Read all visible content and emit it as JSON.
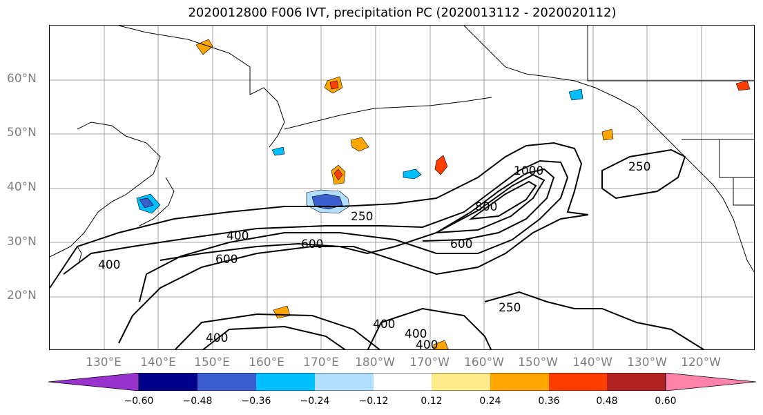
{
  "title": "2020012800 F006 IVT, precipitation PC (2020013112 - 2020020112)",
  "lat_labels": [
    "60°N",
    "50°N",
    "40°N",
    "30°N",
    "20°N"
  ],
  "lon_labels": [
    "130°E",
    "140°E",
    "150°E",
    "160°E",
    "170°E",
    "180°W",
    "170°W",
    "160°W",
    "150°W",
    "140°W",
    "130°W",
    "120°W"
  ],
  "map": {
    "lat_range": [
      10,
      70
    ],
    "lon_range": [
      120,
      250
    ],
    "grid_color": "#a0a0a0",
    "contour_labels": [
      "250",
      "250",
      "250",
      "400",
      "400",
      "400",
      "400",
      "400",
      "400",
      "600",
      "600",
      "600",
      "800",
      "1000"
    ]
  },
  "colorbar": {
    "ticks": [
      "−0.60",
      "−0.48",
      "−0.36",
      "−0.24",
      "−0.12",
      "0.12",
      "0.24",
      "0.36",
      "0.48",
      "0.60"
    ],
    "colors": [
      "#9a32cd",
      "#00008b",
      "#3a5fcd",
      "#00bfff",
      "#b2dfff",
      "#ffffff",
      "#ffeb8c",
      "#ffa500",
      "#ff3e00",
      "#b22222",
      "#ff82ab"
    ]
  }
}
